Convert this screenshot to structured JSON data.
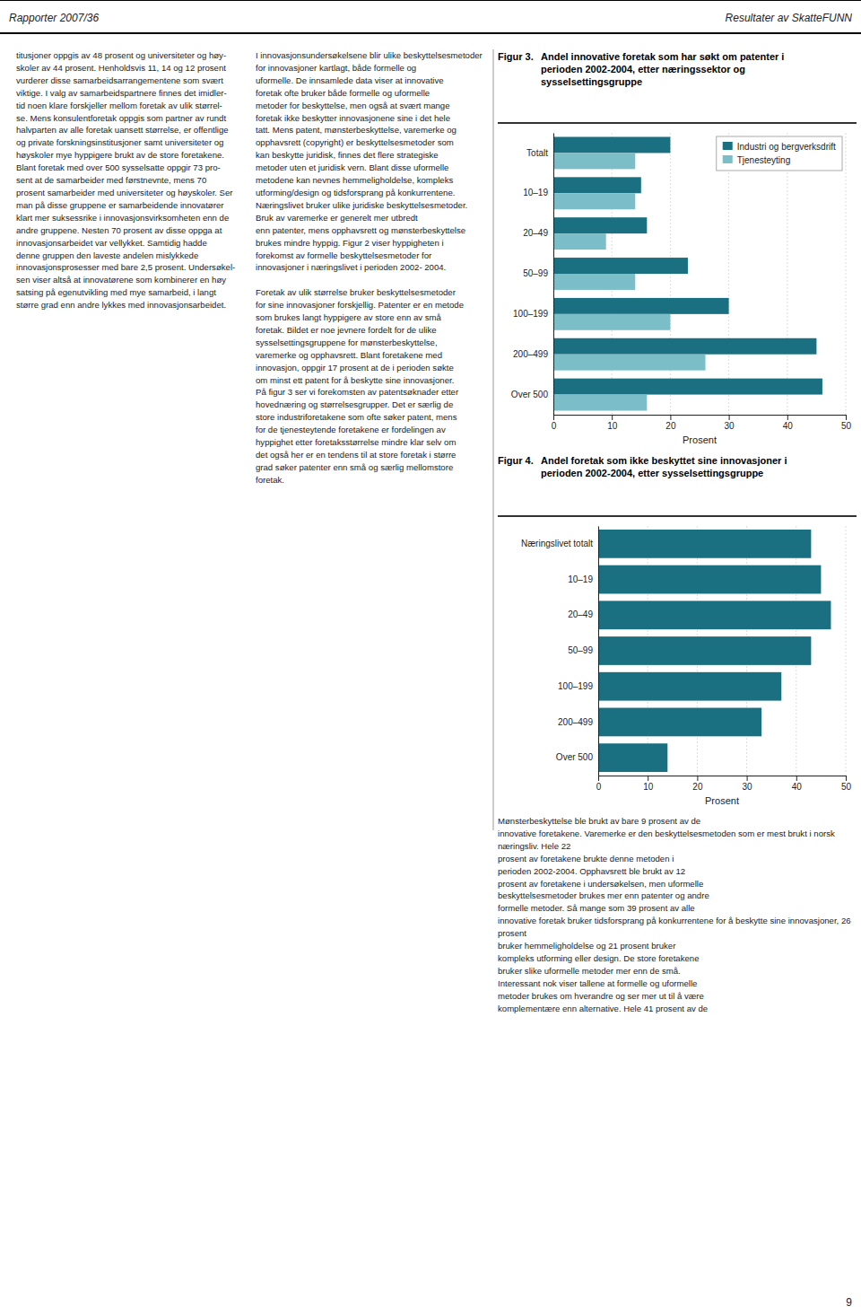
{
  "header_left": "Rapporter 2007/36",
  "header_right": "Resultater av SkatteFUNN",
  "page_number": "9",
  "text_columns": [
    "titusjoner oppgis av 48 prosent og universiteter og høy-\nskoler av 44 prosent. Henholdsvis 11, 14 og 12 prosent\nvurderer disse samarbeidsarrangementene som svært\nviktige. I valg av samarbeidspartnere finnes det imidler-\ntid noen klare forskjeller mellom foretak av ulik størrel-\nse. Mens konsulentforetak oppgis som partner av rundt\nhalvparten av alle foretak uansett størrelse, er offentlige\nog private forskningsinstitusjoner samt universiteter og\nhøyskoler mye hyppigere brukt av de store foretakene.\nBlant foretak med over 500 sysselsatte oppgir 73 pro-\nsent at de samarbeider med førstnevnte, mens 70\nprosent samarbeider med universiteter og høyskoler. Ser\nman på disse gruppene er samarbeidende innovatører\nklart mer suksessrike i innovasjonsvirksomheten enn de\nandre gruppene. Nesten 70 prosent av disse oppga at\ninnovasjonsarbeidet var vellykket. Samtidig hadde\ndenne gruppen den laveste andelen mislykkede\ninnovasjonsprosesser med bare 2,5 prosent. Undersøkel-\nsen viser altså at innovatørene som kombinerer en høy\nsatsing på egenutvikling med mye samarbeid, i langt\nstørre grad enn andre lykkes med innovasjonsarbeidet.",
    "I innovasjonsundersøkelsene blir ulike beskyttelsesmetoder for innovasjoner kartlagt, både formelle og\nuformelle. De innsamlede data viser at innovative\nforetak ofte bruker både formelle og uformelle\nmetoder for beskyttelse, men også at svært mange\nforetak ikke beskytter innovasjonene sine i det hele\ntatt. Mens patent, mønsterbeskyttelse, varemerke og\nopphavsrett (copyright) er beskyttelsesmetoder som\nkan beskytte juridisk, finnes det flere strategiske\nmetoder uten et juridisk vern. Blant disse uformelle\nmetodene kan nevnes hemmeligholdelse, kompleks\nutforming/design og tidsforsprang på konkurrentene.\nNæringslivet bruker ulike juridiske beskyttelsesmetoder. Bruk av varemerke er generelt mer utbredt\nenn patenter, mens opphavsrett og mønsterbeskyttelse\nbrukes mindre hyppig. Figur 2 viser hyppigheten i\nforekomst av formelle beskyttelsesmetoder for\ninnovasjoner i næringslivet i perioden 2002- 2004.\n\nForetak av ulik størrelse bruker beskyttelsesmetoder\nfor sine innovasjoner forskjellig. Patenter er en metode\nsom brukes langt hyppigere av store enn av små\nforetak. Bildet er noe jevnere fordelt for de ulike\nsysselsettingsgruppene for mønsterbeskyttelse,\nvaremerke og opphavsrett. Blant foretakene med\ninnovasjon, oppgir 17 prosent at de i perioden søkte\nom minst ett patent for å beskytte sine innovasjoner.\nPå figur 3 ser vi forekomsten av patentsøknader etter\nhovednæring og størrelsesgrupper. Det er særlig de\nstore industriforetakene som ofte søker patent, mens\nfor de tjenesteytende foretakene er fordelingen av\nhyppighet etter foretaksstørrelse mindre klar selv om\ndet også her er en tendens til at store foretak i større\ngrad søker patenter enn små og særlig mellomstore\nforetak.",
    "Mønsterbeskyttelse ble brukt av bare 9 prosent av de\ninnovative foretakene. Varemerke er den beskyttelsesmetoden som er mest brukt i norsk næringsliv. Hele 22\nprosent av foretakene brukte denne metoden i\nperioden 2002-2004. Opphavsrett ble brukt av 12\nprosent av foretakene i undersøkelsen, men uformelle\nbeskyttelsesmetoder brukes mer enn patenter og andre\nformelle metoder. Så mange som 39 prosent av alle\ninnovative foretak bruker tidsforsprang på konkurrentene for å beskytte sine innovasjoner, 26 prosent\nbruker hemmeligholdelse og 21 prosent bruker\nkompleks utforming eller design. De store foretakene\nbruker slike uformelle metoder mer enn de små.\nInteressant nok viser tallene at formelle og uformelle\nmetoder brukes om hverandre og ser mer ut til å være\nkomplementære enn alternative. Hele 41 prosent av de"
  ],
  "chart_data": [
    {
      "type": "bar",
      "orientation": "horizontal",
      "title": "Figur 3.",
      "subtitle": "Andel innovative foretak som har søkt om patenter i\nperioden 2002-2004, etter næringssektor og\nsysselsettingsgruppe",
      "categories": [
        "Totalt",
        "10–19",
        "20–49",
        "50–99",
        "100–199",
        "200–499",
        "Over 500"
      ],
      "series": [
        {
          "name": "Industri og bergverksdrift",
          "color": "#1a7080",
          "values": [
            20,
            15,
            16,
            23,
            30,
            45,
            46
          ]
        },
        {
          "name": "Tjenesteyting",
          "color": "#7bbec8",
          "values": [
            14,
            14,
            9,
            14,
            20,
            26,
            16
          ]
        }
      ],
      "xlim": [
        0,
        50
      ],
      "xticks": [
        0,
        10,
        20,
        30,
        40,
        50
      ],
      "xlabel": "Prosent",
      "grid": true,
      "legend": "upper right"
    },
    {
      "type": "bar",
      "orientation": "horizontal",
      "title": "Figur 4.",
      "subtitle": "Andel foretak som ikke beskyttet sine innovasjoner i\nperioden 2002-2004, etter sysselsettingsgruppe",
      "categories": [
        "Næringslivet totalt",
        "10–19",
        "20–49",
        "50–99",
        "100–199",
        "200–499",
        "Over 500"
      ],
      "values": [
        43,
        45,
        47,
        43,
        37,
        33,
        14
      ],
      "color": "#1a7080",
      "xlim": [
        0,
        50
      ],
      "xticks": [
        0,
        10,
        20,
        30,
        40,
        50
      ],
      "xlabel": "Prosent",
      "grid": true
    }
  ]
}
